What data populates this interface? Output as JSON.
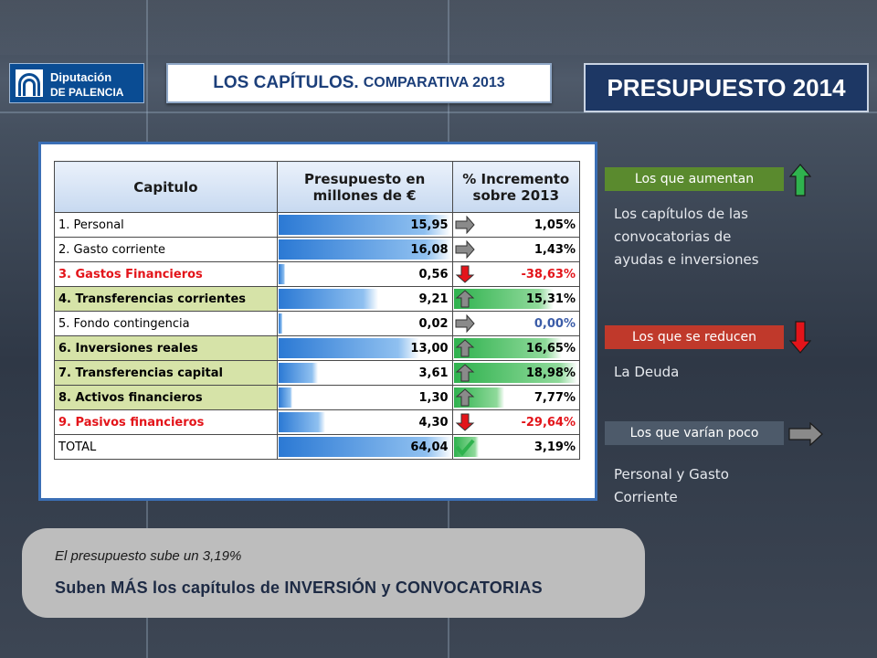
{
  "header": {
    "logo_line1": "Diputación",
    "logo_line2": "DE PALENCIA",
    "subtitle_main": "LOS CAPÍTULOS.",
    "subtitle_small": "COMPARATIVA 2013",
    "title": "PRESUPUESTO 2014"
  },
  "table": {
    "headers": [
      "Capitulo",
      "Presupuesto en",
      "millones de €",
      "% Incremento",
      "sobre 2013"
    ],
    "rows": [
      {
        "name": "1. Personal",
        "budget": "15,95",
        "increment": "1,05%",
        "trend": "flat"
      },
      {
        "name": "2. Gasto corriente",
        "budget": "16,08",
        "increment": "1,43%",
        "trend": "flat"
      },
      {
        "name": "3. Gastos Financieros",
        "budget": "0,56",
        "increment": "-38,63%",
        "trend": "down"
      },
      {
        "name": "4. Transferencias corrientes",
        "budget": "9,21",
        "increment": "15,31%",
        "trend": "up"
      },
      {
        "name": "5. Fondo contingencia",
        "budget": "0,02",
        "increment": "0,00%",
        "trend": "flat"
      },
      {
        "name": "6. Inversiones reales",
        "budget": "13,00",
        "increment": "16,65%",
        "trend": "up"
      },
      {
        "name": "7. Transferencias capital",
        "budget": "3,61",
        "increment": "18,98%",
        "trend": "up"
      },
      {
        "name": "8. Activos financieros",
        "budget": "1,30",
        "increment": "7,77%",
        "trend": "up"
      },
      {
        "name": "9. Pasivos financieros",
        "budget": "4,30",
        "increment": "-29,64%",
        "trend": "down"
      },
      {
        "name": "TOTAL",
        "budget": "64,04",
        "increment": "3,19%",
        "trend": "check"
      }
    ]
  },
  "legend": {
    "up_label": "Los que aumentan",
    "up_text": "Los capítulos de las convocatorias de ayudas e inversiones",
    "down_label": "Los que se reducen",
    "down_text": "La Deuda",
    "flat_label": "Los que varían poco",
    "flat_text": "Personal y Gasto Corriente"
  },
  "note": {
    "line1": "El presupuesto sube un 3,19%",
    "line2": "Suben MÁS los capítulos de INVERSIÓN y CONVOCATORIAS"
  },
  "colors": {
    "up": "#2fb24e",
    "down": "#e3141a",
    "flat": "#8a8a8a",
    "bar": "#2b79d4",
    "title_bg": "#1d3764"
  }
}
